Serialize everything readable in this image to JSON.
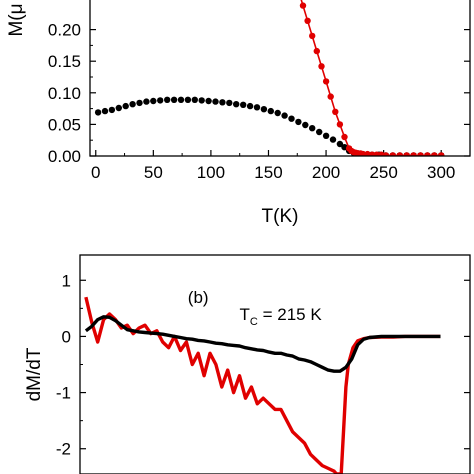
{
  "chart_data": [
    {
      "type": "scatter",
      "panel": "top",
      "title": "",
      "xlabel": "T(K)",
      "ylabel": "M(μ",
      "xlim": [
        -5,
        325
      ],
      "ylim": [
        0,
        0.25
      ],
      "x_ticks": [
        0,
        50,
        100,
        150,
        200,
        250,
        300
      ],
      "x_tick_labels": [
        "0",
        "50",
        "100",
        "150",
        "200",
        "250",
        "300"
      ],
      "y_ticks": [
        0.0,
        0.05,
        0.1,
        0.15,
        0.2
      ],
      "y_tick_labels": [
        "0.00",
        "0.05",
        "0.10",
        "0.15",
        "0.20"
      ],
      "grid": false,
      "series": [
        {
          "color": "#000000",
          "marker": "circle",
          "line": false,
          "x": [
            2,
            8,
            14,
            20,
            26,
            32,
            38,
            44,
            50,
            56,
            62,
            68,
            74,
            80,
            86,
            92,
            98,
            104,
            110,
            116,
            122,
            128,
            134,
            140,
            146,
            152,
            158,
            164,
            170,
            176,
            182,
            188,
            194,
            200,
            206,
            212,
            216,
            220,
            224,
            228,
            232,
            236,
            240,
            246,
            252,
            258,
            264,
            270,
            276,
            282,
            288,
            294,
            300
          ],
          "y": [
            0.069,
            0.071,
            0.073,
            0.076,
            0.079,
            0.082,
            0.084,
            0.086,
            0.087,
            0.088,
            0.089,
            0.089,
            0.089,
            0.089,
            0.089,
            0.088,
            0.087,
            0.086,
            0.085,
            0.084,
            0.082,
            0.081,
            0.079,
            0.077,
            0.074,
            0.071,
            0.068,
            0.064,
            0.059,
            0.054,
            0.049,
            0.044,
            0.038,
            0.032,
            0.026,
            0.019,
            0.014,
            0.008,
            0.005,
            0.004,
            0.003,
            0.002,
            0.002,
            0.002,
            0.001,
            0.001,
            0.001,
            0.001,
            0.001,
            0.001,
            0.001,
            0.001,
            0.001
          ]
        },
        {
          "color": "#e00000",
          "marker": "circle",
          "line": true,
          "x": [
            176,
            180,
            184,
            188,
            192,
            196,
            200,
            204,
            208,
            212,
            216,
            220,
            222,
            224,
            226,
            228,
            230,
            232,
            236,
            240,
            244,
            248,
            252,
            258,
            264,
            270,
            276,
            282,
            288,
            294,
            300
          ],
          "y": [
            0.262,
            0.238,
            0.214,
            0.19,
            0.166,
            0.142,
            0.118,
            0.094,
            0.07,
            0.05,
            0.03,
            0.012,
            0.008,
            0.006,
            0.005,
            0.004,
            0.004,
            0.003,
            0.003,
            0.002,
            0.002,
            0.002,
            0.001,
            0.001,
            0.001,
            0.001,
            0.001,
            0.001,
            0.001,
            0.001,
            0.001
          ]
        }
      ]
    },
    {
      "type": "line",
      "panel": "bottom",
      "title": "",
      "panel_label": "(b)",
      "xlabel": "",
      "ylabel": "dM/dT",
      "xlim": [
        -5,
        325
      ],
      "ylim": [
        -2.45,
        1.45
      ],
      "y_ticks": [
        1,
        0,
        -1,
        -2
      ],
      "y_tick_labels": [
        "1",
        "0",
        "-1",
        "-2"
      ],
      "grid": false,
      "annotation": {
        "prefix": "T",
        "subscript": "C",
        "suffix": " = 215 K",
        "anchor_data": [
          130,
          0.08
        ]
      },
      "series": [
        {
          "color": "#e00000",
          "x": [
            0,
            5,
            10,
            15,
            20,
            25,
            30,
            35,
            40,
            45,
            50,
            55,
            60,
            65,
            70,
            75,
            80,
            85,
            90,
            95,
            100,
            105,
            110,
            115,
            120,
            125,
            130,
            135,
            140,
            145,
            150,
            155,
            160,
            165,
            170,
            175,
            180,
            185,
            190,
            195,
            200,
            205,
            210,
            212,
            214,
            216,
            218,
            220,
            222,
            226,
            230,
            235,
            240,
            250,
            260,
            270,
            280,
            300
          ],
          "y": [
            0.7,
            0.25,
            -0.1,
            0.3,
            0.4,
            0.3,
            0.15,
            0.2,
            0.05,
            0.15,
            0.2,
            0.05,
            0.1,
            -0.1,
            -0.2,
            0.0,
            -0.25,
            -0.1,
            -0.5,
            -0.3,
            -0.7,
            -0.3,
            -0.5,
            -0.9,
            -0.6,
            -1.0,
            -0.7,
            -1.1,
            -0.9,
            -1.2,
            -1.1,
            -1.2,
            -1.3,
            -1.3,
            -1.5,
            -1.7,
            -1.8,
            -1.9,
            -2.1,
            -2.2,
            -2.3,
            -2.35,
            -2.4,
            -2.45,
            -2.45,
            -2.45,
            -1.7,
            -0.9,
            -0.5,
            -0.2,
            -0.08,
            -0.04,
            -0.02,
            -0.01,
            -0.01,
            0.0,
            0.0,
            0.0
          ]
        },
        {
          "color": "#000000",
          "x": [
            0,
            5,
            10,
            15,
            20,
            25,
            30,
            35,
            40,
            45,
            50,
            55,
            60,
            65,
            70,
            75,
            80,
            85,
            90,
            95,
            100,
            105,
            110,
            115,
            120,
            125,
            130,
            135,
            140,
            145,
            150,
            155,
            160,
            165,
            170,
            175,
            180,
            185,
            190,
            195,
            200,
            205,
            210,
            215,
            220,
            225,
            230,
            235,
            240,
            250,
            260,
            270,
            280,
            290,
            300
          ],
          "y": [
            0.1,
            0.18,
            0.3,
            0.35,
            0.34,
            0.28,
            0.2,
            0.12,
            0.1,
            0.08,
            0.07,
            0.06,
            0.05,
            0.04,
            0.02,
            0.0,
            -0.02,
            -0.04,
            -0.05,
            -0.07,
            -0.08,
            -0.1,
            -0.12,
            -0.13,
            -0.15,
            -0.16,
            -0.17,
            -0.2,
            -0.22,
            -0.24,
            -0.25,
            -0.28,
            -0.3,
            -0.3,
            -0.33,
            -0.35,
            -0.4,
            -0.42,
            -0.45,
            -0.5,
            -0.55,
            -0.6,
            -0.62,
            -0.62,
            -0.55,
            -0.4,
            -0.15,
            -0.05,
            -0.02,
            0.0,
            0.0,
            0.0,
            0.0,
            0.0,
            0.0
          ]
        }
      ]
    }
  ]
}
